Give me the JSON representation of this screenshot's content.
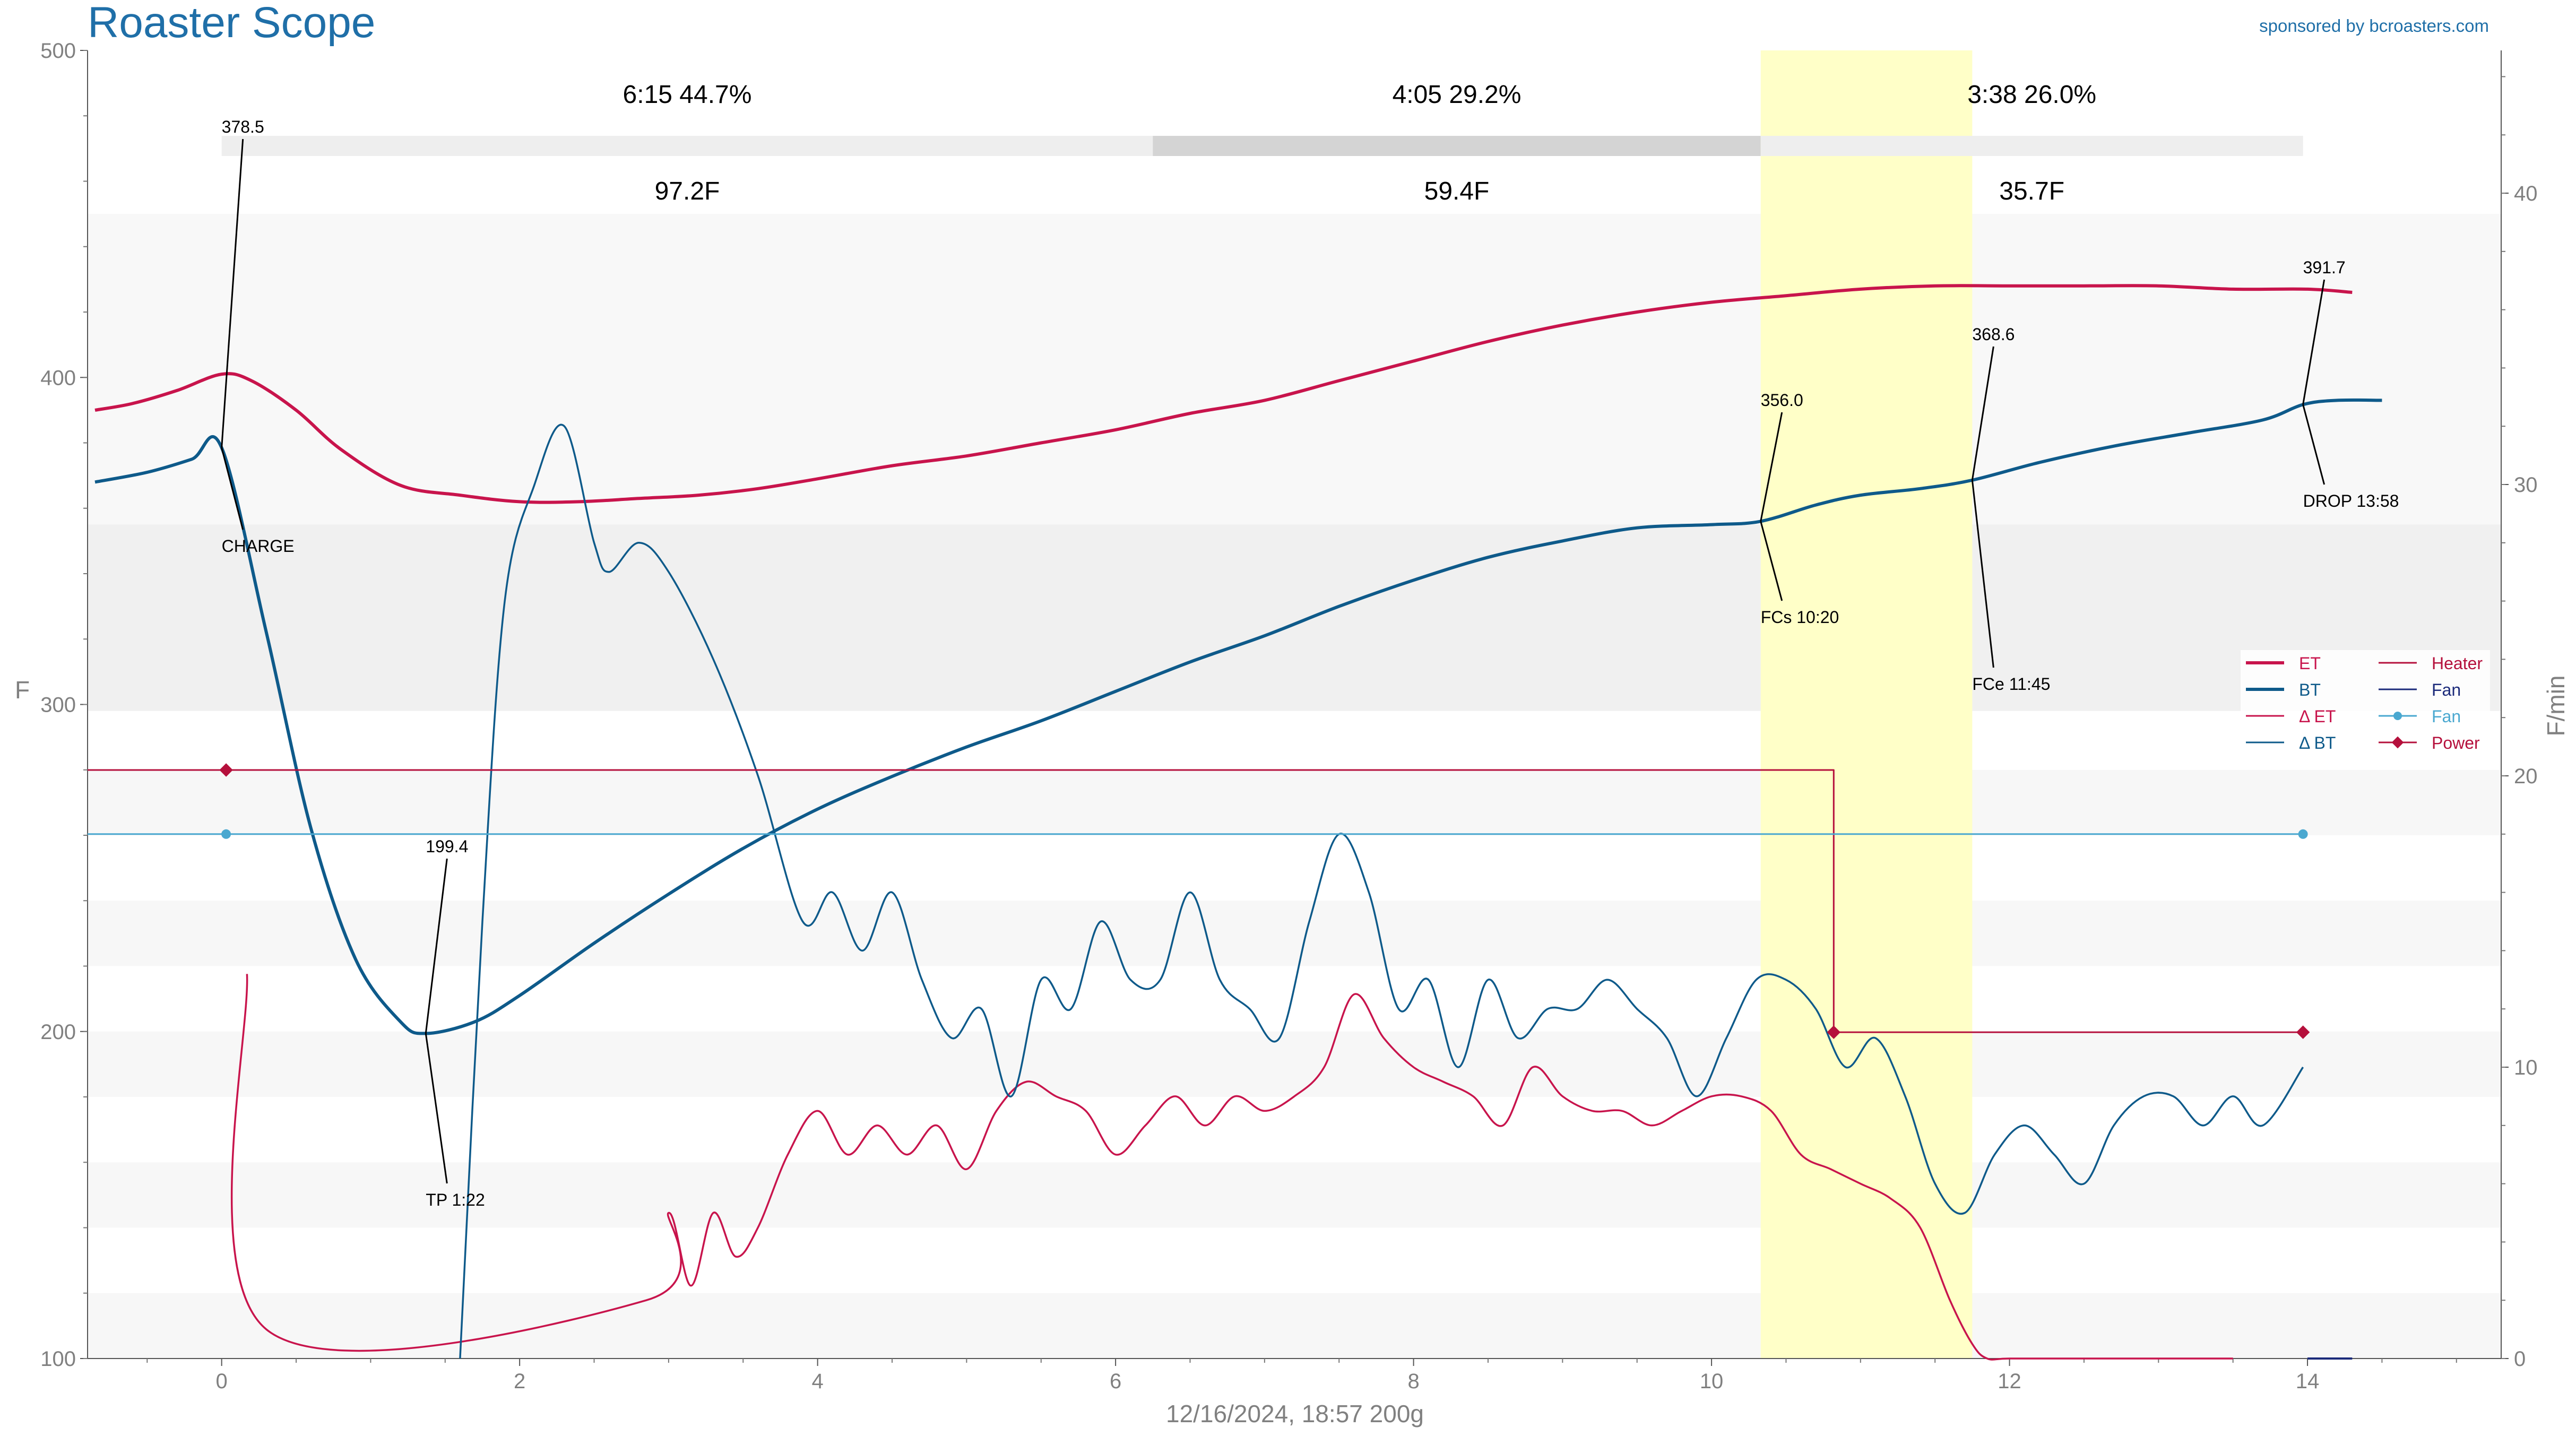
{
  "app": {
    "title": "Roaster Scope",
    "sponsor": "sponsored by bcroasters.com",
    "footer": "12/16/2024, 18:57   200g"
  },
  "colors": {
    "title": "#1f6fa8",
    "et": "#c8144c",
    "bt": "#0e5a8a",
    "delta_et": "#c8144c",
    "delta_bt": "#0e5a8a",
    "heater": "#b5103c",
    "fan": "#4aa8d0",
    "power": "#b5103c",
    "fc_band": "#ffffc8",
    "legend_fan_label": "#1b2a7a"
  },
  "chart_data": {
    "type": "line",
    "xlim": [
      -0.9,
      15.3
    ],
    "ylim": [
      100,
      500
    ],
    "y2lim": [
      0,
      44.9
    ],
    "ylabel": "F",
    "y2label": "F/min",
    "x_ticks": [
      0,
      2,
      4,
      6,
      8,
      10,
      12,
      14
    ],
    "y_ticks": [
      100,
      200,
      300,
      400,
      500
    ],
    "y2_ticks": [
      0,
      10,
      20,
      30,
      40
    ],
    "grid": false,
    "legend_position": "right",
    "phases": [
      {
        "time": "6:15",
        "percent": "44.7%",
        "rise": "97.2F",
        "start": 0,
        "end": 6.25
      },
      {
        "time": "4:05",
        "percent": "29.2%",
        "rise": "59.4F",
        "start": 6.25,
        "end": 10.33
      },
      {
        "time": "3:38",
        "percent": "26.0%",
        "rise": "35.7F",
        "start": 10.33,
        "end": 13.97
      }
    ],
    "first_crack_band": [
      10.33,
      11.75
    ],
    "series": [
      {
        "name": "ET",
        "axis": "left",
        "x": [
          -0.85,
          -0.6,
          -0.3,
          0,
          0.2,
          0.5,
          0.8,
          1.2,
          1.6,
          2,
          2.4,
          2.8,
          3.2,
          3.6,
          4,
          4.5,
          5,
          5.5,
          6,
          6.5,
          7,
          7.5,
          8,
          8.5,
          9,
          9.5,
          10,
          10.5,
          11,
          11.5,
          12,
          12.5,
          13,
          13.5,
          14,
          14.3
        ],
        "y": [
          390,
          392,
          396,
          401,
          399,
          390,
          378,
          367,
          364,
          362,
          362,
          363,
          364,
          366,
          369,
          373,
          376,
          380,
          384,
          389,
          393,
          399,
          405,
          411,
          416,
          420,
          423,
          425,
          427,
          428,
          428,
          428,
          428,
          427,
          427,
          426
        ]
      },
      {
        "name": "BT",
        "axis": "left",
        "x": [
          -0.85,
          -0.5,
          -0.2,
          0,
          0.3,
          0.6,
          0.9,
          1.2,
          1.37,
          1.7,
          2,
          2.5,
          3,
          3.5,
          4,
          4.5,
          5,
          5.5,
          6,
          6.5,
          7,
          7.5,
          8,
          8.5,
          9,
          9.5,
          10,
          10.33,
          10.7,
          11,
          11.4,
          11.75,
          12.2,
          12.7,
          13.2,
          13.7,
          13.97,
          14.2,
          14.5
        ],
        "y": [
          368,
          371,
          375,
          378.5,
          322,
          262,
          222,
          203,
          199.4,
          203,
          211,
          227,
          242,
          256,
          268,
          278,
          287,
          295,
          304,
          313,
          321,
          330,
          338,
          345,
          350,
          354,
          355,
          356,
          361,
          364,
          366,
          368.6,
          374,
          379,
          383,
          387,
          391.7,
          393,
          393
        ]
      },
      {
        "name": "Δ ET",
        "axis": "right",
        "x": [
          0.17,
          0.3,
          2.85,
          3.0,
          3.15,
          3.3,
          3.45,
          3.6,
          3.8,
          4.0,
          4.2,
          4.4,
          4.6,
          4.8,
          5.0,
          5.2,
          5.4,
          5.6,
          5.8,
          6.0,
          6.2,
          6.4,
          6.6,
          6.8,
          7.0,
          7.2,
          7.4,
          7.6,
          7.8,
          8.0,
          8.2,
          8.4,
          8.6,
          8.8,
          9.0,
          9.2,
          9.4,
          9.6,
          9.8,
          10.0,
          10.2,
          10.4,
          10.6,
          10.8,
          11.0,
          11.2,
          11.4,
          11.6,
          11.75,
          11.85,
          12.0,
          12.5,
          13.0,
          13.5
        ],
        "y": [
          13.2,
          1.0,
          2.0,
          5.0,
          2.5,
          5.0,
          3.5,
          4.5,
          7.0,
          8.5,
          7.0,
          8.0,
          7.0,
          8.0,
          6.5,
          8.5,
          9.5,
          9.0,
          8.5,
          7.0,
          8.0,
          9.0,
          8.0,
          9.0,
          8.5,
          9.0,
          10.0,
          12.5,
          11.0,
          10.0,
          9.5,
          9.0,
          8.0,
          10.0,
          9.0,
          8.5,
          8.5,
          8.0,
          8.5,
          9.0,
          9.0,
          8.5,
          7.0,
          6.5,
          6.0,
          5.5,
          4.5,
          2.0,
          0.5,
          0.0,
          0.0,
          0.0,
          0.0,
          0.0
        ]
      },
      {
        "name": "Δ BT",
        "axis": "right",
        "x": [
          1.6,
          1.75,
          1.9,
          2.1,
          2.3,
          2.5,
          2.6,
          2.8,
          3.0,
          3.3,
          3.6,
          3.9,
          4.1,
          4.3,
          4.5,
          4.7,
          4.9,
          5.1,
          5.3,
          5.5,
          5.7,
          5.9,
          6.1,
          6.3,
          6.5,
          6.7,
          6.9,
          7.1,
          7.3,
          7.5,
          7.7,
          7.9,
          8.1,
          8.3,
          8.5,
          8.7,
          8.9,
          9.1,
          9.3,
          9.5,
          9.7,
          9.9,
          10.1,
          10.3,
          10.5,
          10.7,
          10.9,
          11.1,
          11.3,
          11.5,
          11.7,
          11.9,
          12.1,
          12.3,
          12.5,
          12.7,
          12.9,
          13.1,
          13.3,
          13.5,
          13.7,
          13.97
        ],
        "y": [
          0,
          15,
          26,
          30,
          32,
          28,
          27,
          28,
          27,
          24,
          20,
          15,
          16,
          14,
          16,
          13,
          11,
          12,
          9,
          13,
          12,
          15,
          13,
          13,
          16,
          13,
          12,
          11,
          15,
          18,
          16,
          12,
          13,
          10,
          13,
          11,
          12,
          12,
          13,
          12,
          11,
          9,
          11,
          13,
          13,
          12,
          10,
          11,
          9,
          6,
          5,
          7,
          8,
          7,
          6,
          8,
          9,
          9,
          8,
          9,
          8,
          10
        ]
      },
      {
        "name": "Heater",
        "axis": "right",
        "x": [
          -0.9,
          10.82,
          10.82,
          14.0
        ],
        "y": [
          20.2,
          20.2,
          11.2,
          11.2
        ]
      },
      {
        "name": "Fan",
        "axis": "right",
        "x": [
          14.0,
          14.3
        ],
        "y": [
          0,
          0
        ]
      },
      {
        "name": "Fan",
        "axis": "right",
        "x": [
          -0.9,
          0.03,
          13.97
        ],
        "y": [
          18.0,
          18.0,
          18.0
        ]
      },
      {
        "name": "Power",
        "axis": "right",
        "x": [
          0.03,
          10.82,
          13.97
        ],
        "y": [
          20.2,
          11.2,
          11.2
        ]
      }
    ],
    "annotations": [
      {
        "label": "378.5",
        "x": 0,
        "y": 378.5
      },
      {
        "label": "CHARGE",
        "x": 0,
        "y": 378.5
      },
      {
        "label": "199.4",
        "x": 1.37,
        "y": 199.4
      },
      {
        "label": "TP 1:22",
        "x": 1.37,
        "y": 199.4
      },
      {
        "label": "356.0",
        "x": 10.33,
        "y": 356.0
      },
      {
        "label": "FCs 10:20",
        "x": 10.33,
        "y": 356.0
      },
      {
        "label": "368.6",
        "x": 11.75,
        "y": 368.6
      },
      {
        "label": "FCe 11:45",
        "x": 11.75,
        "y": 368.6
      },
      {
        "label": "391.7",
        "x": 13.97,
        "y": 391.7
      },
      {
        "label": "DROP 13:58",
        "x": 13.97,
        "y": 391.7
      }
    ],
    "legend": [
      {
        "label": "ET",
        "style": "thick",
        "color": "#c8144c"
      },
      {
        "label": "BT",
        "style": "thick",
        "color": "#0e5a8a"
      },
      {
        "label": "Δ ET",
        "style": "thin",
        "color": "#c8144c"
      },
      {
        "label": "Δ BT",
        "style": "thin",
        "color": "#0e5a8a"
      },
      {
        "label": "Heater",
        "style": "thin",
        "color": "#b5103c"
      },
      {
        "label": "Fan",
        "style": "thin",
        "color": "#1b2a7a"
      },
      {
        "label": "Fan",
        "style": "dot",
        "color": "#4aa8d0"
      },
      {
        "label": "Power",
        "style": "diamond",
        "color": "#b5103c"
      }
    ]
  }
}
